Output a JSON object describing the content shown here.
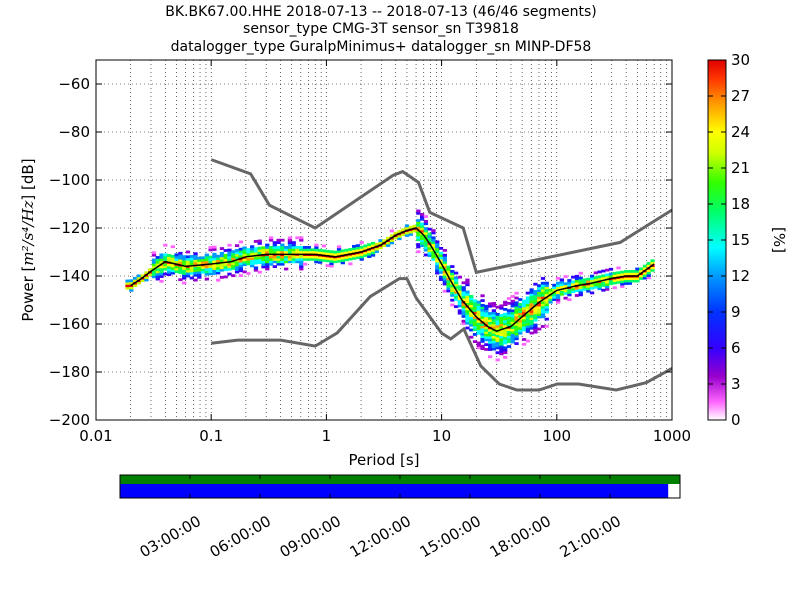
{
  "title_lines": [
    "BK.BK67.00.HHE   2018-07-13 -- 2018-07-13  (46/46 segments)",
    "sensor_type CMG-3T sensor_sn T39818",
    "datalogger_type GuralpMinimus+ datalogger_sn MINP-DF58"
  ],
  "chart_data": {
    "type": "heatmap",
    "description_of_axes": "PPSD probabilistic power spectral density",
    "xlabel": "Period [s]",
    "ylabel_prefix": "Power [",
    "ylabel_units": "m²/s⁴/Hz",
    "ylabel_suffix": "] [dB]",
    "x_scale": "log",
    "xlim": [
      0.01,
      1000
    ],
    "x_ticks": [
      0.01,
      0.1,
      1,
      10,
      100,
      1000
    ],
    "x_tick_labels": [
      "0.01",
      "0.1",
      "1",
      "10",
      "100",
      "1000"
    ],
    "ylim": [
      -200,
      -50
    ],
    "y_ticks": [
      -60,
      -80,
      -100,
      -120,
      -140,
      -160,
      -180,
      -200
    ],
    "y_tick_labels": [
      "−60",
      "−80",
      "−100",
      "−120",
      "−140",
      "−160",
      "−180",
      "−200"
    ],
    "grid": "dotted, x and y",
    "colorbar": {
      "label": "[%]",
      "range": [
        0,
        30
      ],
      "ticks": [
        0,
        3,
        6,
        9,
        12,
        15,
        18,
        21,
        24,
        27,
        30
      ],
      "colormap": "pqlx"
    },
    "noise_models": {
      "high_noise_model": {
        "periods": [
          0.1,
          0.22,
          0.32,
          0.8,
          3.8,
          4.6,
          6.3,
          7.9,
          15.4,
          20,
          354.8,
          1000
        ],
        "powers": [
          -91.5,
          -97.4,
          -110.5,
          -120,
          -98,
          -96.5,
          -101,
          -113.5,
          -120,
          -138.5,
          -126,
          -112.5
        ]
      },
      "low_noise_model": {
        "periods": [
          0.1,
          0.17,
          0.4,
          0.8,
          1.24,
          2.4,
          4.3,
          5,
          6,
          10,
          12,
          15.6,
          21.9,
          31.6,
          45,
          70,
          101,
          154,
          328,
          600,
          1000
        ],
        "powers": [
          -168,
          -166.7,
          -166.7,
          -169.2,
          -163.7,
          -148.6,
          -141.1,
          -141.1,
          -149,
          -163.8,
          -166.2,
          -162.1,
          -177.5,
          -185,
          -187.5,
          -187.5,
          -185,
          -185,
          -187.5,
          -184.4,
          -178.5
        ]
      }
    },
    "mode_curve": {
      "periods": [
        0.02,
        0.025,
        0.03,
        0.04,
        0.06,
        0.1,
        0.15,
        0.2,
        0.3,
        0.5,
        0.8,
        1.2,
        2,
        3,
        4,
        5,
        6,
        7,
        8,
        10,
        12,
        15,
        20,
        25,
        30,
        40,
        50,
        70,
        100,
        150,
        200,
        300,
        400,
        500,
        700
      ],
      "powers": [
        -144,
        -141,
        -138,
        -134,
        -136,
        -135,
        -134,
        -132,
        -131,
        -131,
        -131,
        -132,
        -130,
        -127,
        -123,
        -121,
        -120,
        -123,
        -127,
        -135,
        -142,
        -150,
        -157,
        -161,
        -163,
        -161,
        -157,
        -151,
        -146,
        -144,
        -143,
        -141,
        -140,
        -140,
        -135
      ]
    }
  },
  "timeline": {
    "tick_labels": [
      "03:00:00",
      "06:00:00",
      "09:00:00",
      "12:00:00",
      "15:00:00",
      "18:00:00",
      "21:00:00"
    ],
    "top_bar_color": "#008000",
    "bottom_bar_color": "#0000ff",
    "coverage_fraction": 0.979
  },
  "colors": {
    "noise_model": "#666666",
    "mode_curve": "#000000"
  }
}
